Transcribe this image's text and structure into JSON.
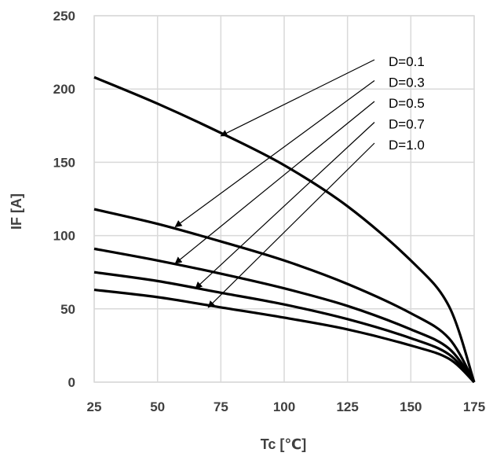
{
  "chart_data": {
    "type": "line",
    "xlabel": "Tc [℃]",
    "ylabel": "IF [A]",
    "xlim": [
      25,
      175
    ],
    "ylim": [
      0,
      250
    ],
    "x_ticks": [
      "25",
      "50",
      "75",
      "100",
      "125",
      "150",
      "175"
    ],
    "y_ticks": [
      "0",
      "50",
      "100",
      "150",
      "200",
      "250"
    ],
    "grid": true,
    "series": [
      {
        "name": "D=0.1",
        "x": [
          25,
          50,
          75,
          100,
          125,
          150,
          165,
          175
        ],
        "y": [
          208,
          190,
          170,
          148,
          120,
          83,
          52,
          0
        ],
        "arrow_target": {
          "x": 75,
          "y": 168
        }
      },
      {
        "name": "D=0.3",
        "x": [
          25,
          50,
          75,
          100,
          125,
          150,
          165,
          175
        ],
        "y": [
          118,
          108,
          96,
          83,
          67,
          47,
          30,
          0
        ],
        "arrow_target": {
          "x": 57,
          "y": 106
        }
      },
      {
        "name": "D=0.5",
        "x": [
          25,
          50,
          75,
          100,
          125,
          150,
          165,
          175
        ],
        "y": [
          91,
          83,
          74,
          64,
          52,
          36,
          23,
          0
        ],
        "arrow_target": {
          "x": 57,
          "y": 81
        }
      },
      {
        "name": "D=0.7",
        "x": [
          25,
          50,
          75,
          100,
          125,
          150,
          165,
          175
        ],
        "y": [
          75,
          69,
          61,
          53,
          43,
          30,
          19,
          0
        ],
        "arrow_target": {
          "x": 65,
          "y": 64
        }
      },
      {
        "name": "D=1.0",
        "x": [
          25,
          50,
          75,
          100,
          125,
          150,
          165,
          175
        ],
        "y": [
          63,
          58,
          51,
          44,
          36,
          25,
          16,
          0
        ],
        "arrow_target": {
          "x": 70,
          "y": 51
        }
      }
    ],
    "line_color": "#000000",
    "grid_color": "#d9d9d9"
  }
}
